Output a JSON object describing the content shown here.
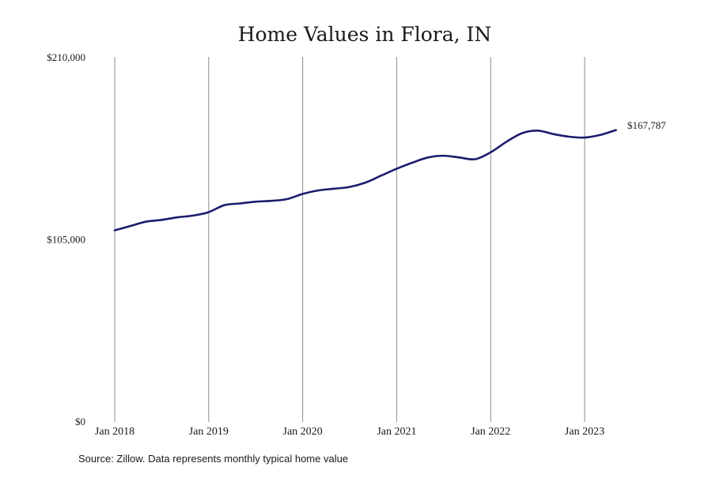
{
  "chart_data": {
    "type": "line",
    "title": "Home Values in Flora, IN",
    "xlabel": "",
    "ylabel": "",
    "y_tick_labels": [
      "$0",
      "$105,000",
      "$210,000"
    ],
    "y_ticks": [
      0,
      105000,
      210000
    ],
    "ylim": [
      0,
      210000
    ],
    "x_tick_labels": [
      "Jan 2018",
      "Jan 2019",
      "Jan 2020",
      "Jan 2021",
      "Jan 2022",
      "Jan 2023"
    ],
    "x_ticks": [
      "2018-01",
      "2019-01",
      "2020-01",
      "2021-01",
      "2022-01",
      "2023-01"
    ],
    "xlim": [
      "2018-01",
      "2023-12"
    ],
    "grid": {
      "x": true,
      "y": false
    },
    "series": [
      {
        "color": "#1c1c6e",
        "x": [
          "2018-01",
          "2018-03",
          "2018-05",
          "2018-07",
          "2018-09",
          "2018-11",
          "2019-01",
          "2019-03",
          "2019-05",
          "2019-07",
          "2019-09",
          "2019-11",
          "2020-01",
          "2020-03",
          "2020-05",
          "2020-07",
          "2020-09",
          "2020-11",
          "2021-01",
          "2021-03",
          "2021-05",
          "2021-07",
          "2021-09",
          "2021-11",
          "2022-01",
          "2022-03",
          "2022-05",
          "2022-07",
          "2022-09",
          "2022-11",
          "2023-01",
          "2023-03",
          "2023-05"
        ],
        "values": [
          110000,
          112500,
          115000,
          116000,
          117500,
          118500,
          120500,
          124500,
          125500,
          126500,
          127000,
          128000,
          131000,
          133000,
          134000,
          135000,
          137500,
          141500,
          145500,
          149000,
          152000,
          153000,
          152000,
          151000,
          155000,
          161000,
          166000,
          167500,
          165500,
          164000,
          163500,
          165000,
          167787
        ]
      }
    ],
    "end_label": "$167,787"
  },
  "source": "Source: Zillow. Data represents monthly typical home value"
}
